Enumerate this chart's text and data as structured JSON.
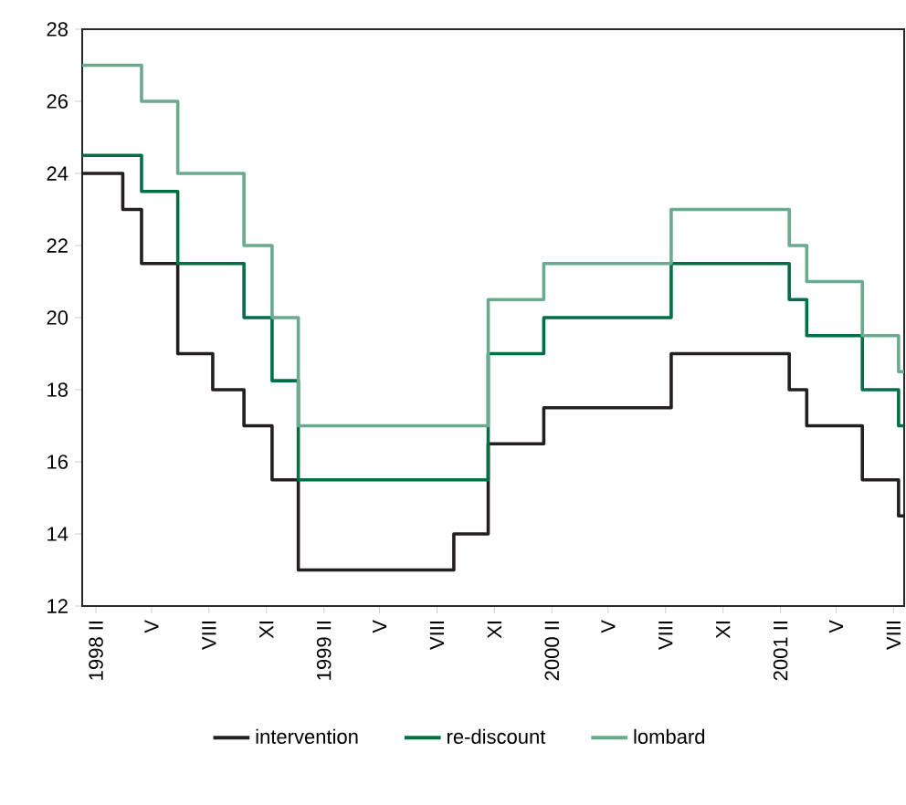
{
  "chart_data": {
    "type": "step",
    "xlim": [
      "1998-01-10",
      "2001-08-18"
    ],
    "ylim": [
      12,
      28
    ],
    "yticks": [
      12,
      14,
      16,
      18,
      20,
      22,
      24,
      26,
      28
    ],
    "xticks": [
      {
        "value": "1998-02-01",
        "label": "1998 II"
      },
      {
        "value": "1998-05-01",
        "label": "V"
      },
      {
        "value": "1998-08-01",
        "label": "VIII"
      },
      {
        "value": "1998-11-01",
        "label": "XI"
      },
      {
        "value": "1999-02-01",
        "label": "1999 II"
      },
      {
        "value": "1999-05-01",
        "label": "V"
      },
      {
        "value": "1999-08-01",
        "label": "VIII"
      },
      {
        "value": "1999-11-01",
        "label": "XI"
      },
      {
        "value": "2000-02-01",
        "label": "2000 II"
      },
      {
        "value": "2000-05-01",
        "label": "V"
      },
      {
        "value": "2000-08-01",
        "label": "VIII"
      },
      {
        "value": "2000-11-01",
        "label": "XI"
      },
      {
        "value": "2001-02-01",
        "label": "2001 II"
      },
      {
        "value": "2001-05-01",
        "label": "V"
      },
      {
        "value": "2001-08-01",
        "label": "VIII"
      }
    ],
    "legend": "bottom",
    "series": [
      {
        "name": "intervention",
        "color": "#231f20",
        "x": [
          "1998-01-10",
          "1998-03-16",
          "1998-04-15",
          "1998-06-12",
          "1998-08-07",
          "1998-09-26",
          "1998-11-10",
          "1998-12-22",
          "1999-08-28",
          "1999-10-22",
          "2000-01-19",
          "2000-08-10",
          "2001-02-15",
          "2001-03-15",
          "2001-06-12",
          "2001-08-09",
          "2001-08-18"
        ],
        "values": [
          24,
          23,
          21.5,
          19,
          18,
          17,
          15.5,
          13,
          14,
          16.5,
          17.5,
          19,
          18,
          17,
          15.5,
          14.5,
          14.5
        ]
      },
      {
        "name": "re-discount",
        "color": "#006f45",
        "x": [
          "1998-01-10",
          "1998-04-15",
          "1998-06-12",
          "1998-09-26",
          "1998-11-10",
          "1998-12-22",
          "1999-10-22",
          "2000-01-19",
          "2000-08-10",
          "2001-02-15",
          "2001-03-15",
          "2001-06-12",
          "2001-08-09",
          "2001-08-18"
        ],
        "values": [
          24.5,
          23.5,
          21.5,
          20,
          18.25,
          15.5,
          19,
          20,
          21.5,
          20.5,
          19.5,
          18,
          17,
          17
        ]
      },
      {
        "name": "lombard",
        "color": "#6aaa8e",
        "x": [
          "1998-01-10",
          "1998-04-15",
          "1998-06-12",
          "1998-09-26",
          "1998-11-10",
          "1998-12-22",
          "1999-10-22",
          "2000-01-19",
          "2000-08-10",
          "2001-02-15",
          "2001-03-15",
          "2001-06-12",
          "2001-08-09",
          "2001-08-18"
        ],
        "values": [
          27,
          26,
          24,
          22,
          20,
          17,
          20.5,
          21.5,
          23,
          22,
          21,
          19.5,
          18.5,
          18.5
        ]
      }
    ]
  }
}
